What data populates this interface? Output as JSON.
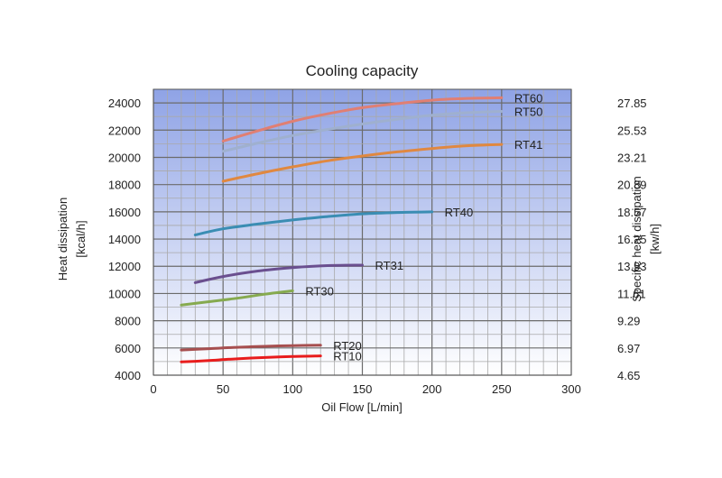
{
  "chart_data": {
    "type": "line",
    "title": "Cooling capacity",
    "xlabel": "Oil Flow [L/min]",
    "ylabel_line1": "Heat dissipation",
    "ylabel_line2": "[kcal/h]",
    "y2label_line1": "Specific heat dissipation",
    "y2label_line2": "[kw/h]",
    "xlim": [
      0,
      300
    ],
    "ylim": [
      4000,
      25000
    ],
    "x_ticks": [
      0,
      50,
      100,
      150,
      200,
      250,
      300
    ],
    "x_tick_labels": [
      "0",
      "50",
      "100",
      "150",
      "200",
      "250",
      "300"
    ],
    "y_ticks": [
      4000,
      6000,
      8000,
      10000,
      12000,
      14000,
      16000,
      18000,
      20000,
      22000,
      24000
    ],
    "y_tick_labels": [
      "4000",
      "6000",
      "8000",
      "10000",
      "12000",
      "14000",
      "16000",
      "18000",
      "20000",
      "22000",
      "24000"
    ],
    "y2_tick_labels": [
      "4.65",
      "6.97",
      "9.29",
      "11.61",
      "13.93",
      "16.25",
      "18.57",
      "20.89",
      "23.21",
      "25.53",
      "27.85"
    ],
    "grid": true,
    "background_gradient": [
      "#ffffff",
      "#8fa3e6"
    ],
    "series": [
      {
        "name": "RT60",
        "color": "#e07f73",
        "x": [
          50,
          75,
          100,
          125,
          150,
          175,
          200,
          225,
          250
        ],
        "y": [
          21200,
          21950,
          22650,
          23200,
          23650,
          23950,
          24200,
          24330,
          24380
        ]
      },
      {
        "name": "RT50",
        "color": "#9fb0cf",
        "x": [
          50,
          75,
          100,
          125,
          150,
          175,
          200,
          225,
          250
        ],
        "y": [
          20450,
          21050,
          21600,
          22050,
          22450,
          22800,
          23100,
          23280,
          23380
        ]
      },
      {
        "name": "RT41",
        "color": "#e08840",
        "x": [
          50,
          75,
          100,
          125,
          150,
          175,
          200,
          225,
          250
        ],
        "y": [
          18250,
          18800,
          19300,
          19750,
          20100,
          20400,
          20650,
          20850,
          20950
        ]
      },
      {
        "name": "RT40",
        "color": "#3a8db3",
        "x": [
          30,
          50,
          75,
          100,
          125,
          150,
          175,
          200
        ],
        "y": [
          14300,
          14750,
          15100,
          15400,
          15650,
          15850,
          15950,
          16000
        ]
      },
      {
        "name": "RT31",
        "color": "#6a4f8f",
        "x": [
          30,
          50,
          75,
          100,
          125,
          150
        ],
        "y": [
          10800,
          11250,
          11650,
          11900,
          12050,
          12080
        ]
      },
      {
        "name": "RT30",
        "color": "#86aa4f",
        "x": [
          20,
          40,
          60,
          80,
          100
        ],
        "y": [
          9150,
          9400,
          9650,
          9950,
          10200
        ]
      },
      {
        "name": "RT20",
        "color": "#a74f4f",
        "x": [
          20,
          40,
          60,
          80,
          100,
          120
        ],
        "y": [
          5850,
          5950,
          6050,
          6120,
          6170,
          6200
        ]
      },
      {
        "name": "RT10",
        "color": "#e81c1c",
        "x": [
          20,
          40,
          60,
          80,
          100,
          120
        ],
        "y": [
          4980,
          5080,
          5200,
          5300,
          5380,
          5420
        ]
      }
    ]
  }
}
